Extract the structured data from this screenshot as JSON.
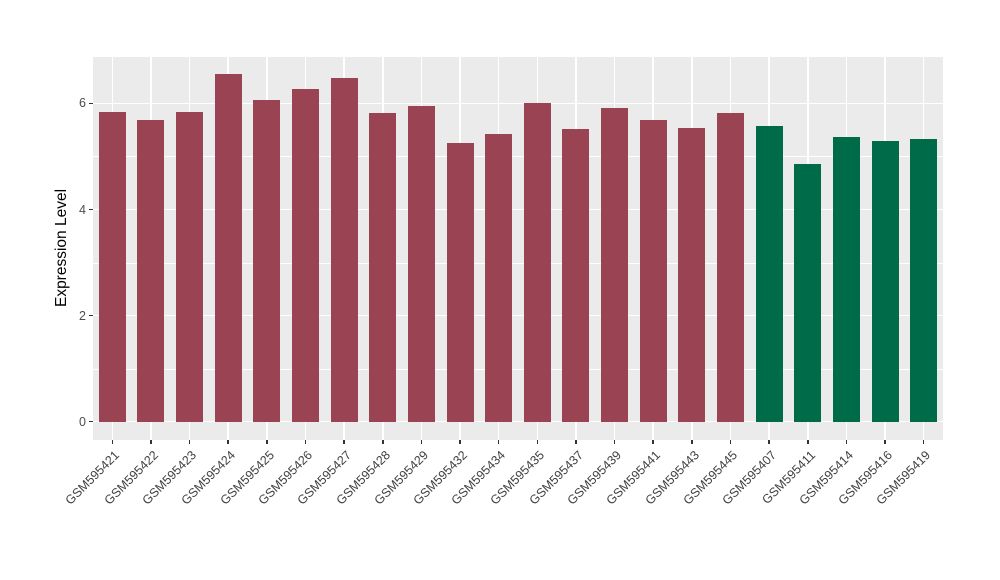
{
  "chart_data": {
    "type": "bar",
    "title": "",
    "xlabel": "",
    "ylabel": "Expression Level",
    "categories": [
      "GSM595421",
      "GSM595422",
      "GSM595423",
      "GSM595424",
      "GSM595425",
      "GSM595426",
      "GSM595427",
      "GSM595428",
      "GSM595429",
      "GSM595432",
      "GSM595434",
      "GSM595435",
      "GSM595437",
      "GSM595439",
      "GSM595441",
      "GSM595443",
      "GSM595445",
      "GSM595407",
      "GSM595411",
      "GSM595414",
      "GSM595416",
      "GSM595419"
    ],
    "values": [
      5.84,
      5.69,
      5.84,
      6.55,
      6.06,
      6.27,
      6.47,
      5.81,
      5.96,
      5.25,
      5.43,
      6.0,
      5.52,
      5.92,
      5.69,
      5.54,
      5.82,
      5.57,
      4.85,
      5.36,
      5.29,
      5.33
    ],
    "bar_colors": [
      "#9A4453",
      "#9A4453",
      "#9A4453",
      "#9A4453",
      "#9A4453",
      "#9A4453",
      "#9A4453",
      "#9A4453",
      "#9A4453",
      "#9A4453",
      "#9A4453",
      "#9A4453",
      "#9A4453",
      "#9A4453",
      "#9A4453",
      "#9A4453",
      "#9A4453",
      "#006B48",
      "#006B48",
      "#006B48",
      "#006B48",
      "#006B48"
    ],
    "color_groups": [
      {
        "color": "#9A4453",
        "bar_count": 17
      },
      {
        "color": "#006B48",
        "bar_count": 5
      }
    ],
    "yticks": [
      0,
      2,
      4,
      6
    ],
    "yminor_ticks": [
      1,
      3,
      5
    ],
    "ylim": [
      -0.35,
      6.88
    ],
    "grid": true,
    "legend_position": "none",
    "style": {
      "panel_background": "#EBEBEB",
      "grid_color": "#FFFFFF",
      "tick_mark_color": "#333333",
      "axis_text_color": "#4D4D4D",
      "axis_title_color": "#000000",
      "figure_background": "#FFFFFF"
    }
  }
}
